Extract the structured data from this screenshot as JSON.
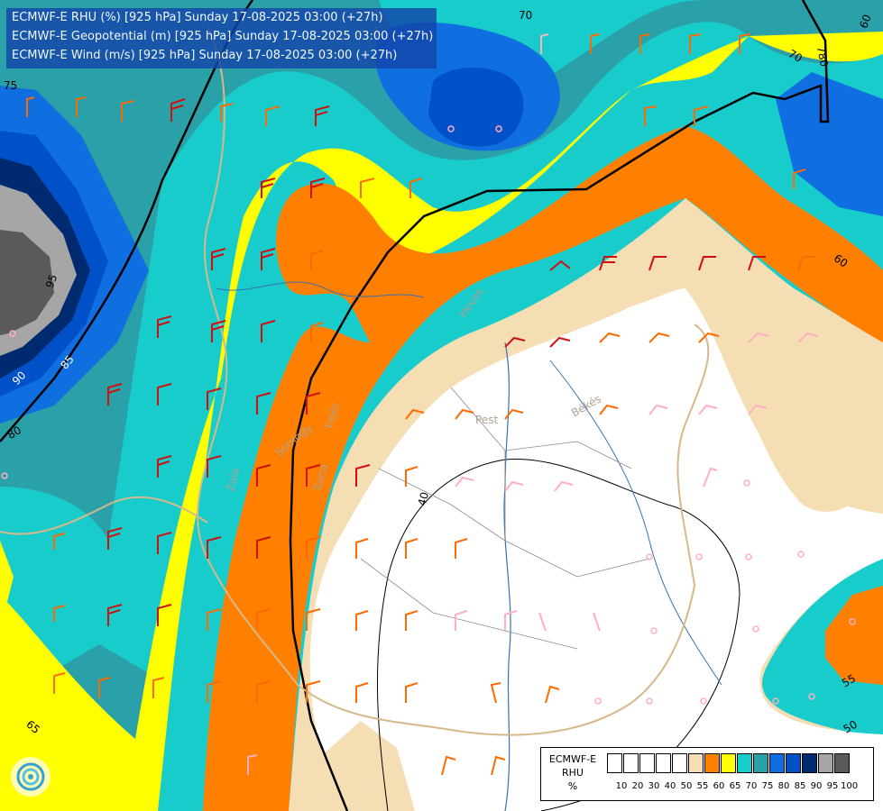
{
  "header": {
    "lines": [
      "ECMWF-E RHU (%) [925 hPa] Sunday 17-08-2025 03:00 (+27h)",
      "ECMWF-E Geopotential (m) [925 hPa] Sunday 17-08-2025 03:00 (+27h)",
      "ECMWF-E Wind (m/s) [925 hPa] Sunday 17-08-2025 03:00 (+27h)"
    ]
  },
  "map": {
    "region_labels": [
      "Pest",
      "Békés",
      "Heves",
      "Zala",
      "Somogy",
      "Tolna",
      "Fejér"
    ],
    "contour_labels": [
      "70",
      "75",
      "95",
      "95",
      "90",
      "85",
      "80",
      "60",
      "40",
      "65",
      "60",
      "65",
      "55",
      "50",
      "70",
      "780"
    ]
  },
  "legend": {
    "product": "ECMWF-E",
    "variable": "RHU",
    "unit": "%",
    "colors": [
      "#ffffff",
      "#ffffff",
      "#ffffff",
      "#ffffff",
      "#ffffff",
      "#f5deb3",
      "#ff8000",
      "#ffff00",
      "#19cccc",
      "#2aa0a8",
      "#0f6ee0",
      "#0050c8",
      "#002a70",
      "#a6a6a6",
      "#5a5a5a"
    ],
    "ticks": [
      "10",
      "20",
      "30",
      "40",
      "50",
      "55",
      "60",
      "65",
      "70",
      "75",
      "80",
      "85",
      "90",
      "95",
      "100"
    ]
  }
}
